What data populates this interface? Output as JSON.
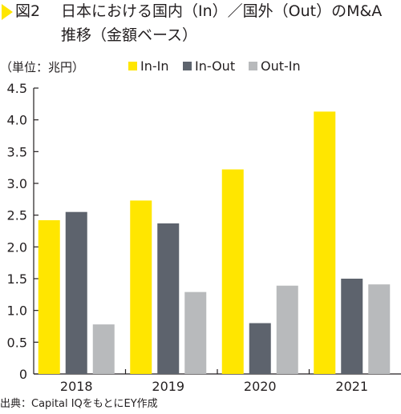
{
  "figure": {
    "label": "図2",
    "title_line1": "日本における国内（In）／国外（Out）のM&A",
    "title_line2": "推移（金額ベース）"
  },
  "colors": {
    "marker": "#ffe600",
    "axis": "#231f20"
  },
  "chart_data": {
    "type": "bar",
    "unit_label": "（単位：兆円）",
    "categories": [
      "2018",
      "2019",
      "2020",
      "2021"
    ],
    "series": [
      {
        "name": "In-In",
        "color": "#ffe600",
        "values": [
          2.42,
          2.73,
          3.22,
          4.13
        ]
      },
      {
        "name": "In-Out",
        "color": "#5d636d",
        "values": [
          2.55,
          2.37,
          0.8,
          1.5
        ]
      },
      {
        "name": "Out-In",
        "color": "#b8babc",
        "values": [
          0.78,
          1.29,
          1.39,
          1.41
        ]
      }
    ],
    "ylim": [
      0,
      4.5
    ],
    "yticks": [
      "0",
      "0.5",
      "1.0",
      "1.5",
      "2.0",
      "2.5",
      "3.0",
      "3.5",
      "4.0",
      "4.5"
    ],
    "ytick_values": [
      0,
      0.5,
      1.0,
      1.5,
      2.0,
      2.5,
      3.0,
      3.5,
      4.0,
      4.5
    ],
    "legend_position": "top",
    "grid": false
  },
  "footnote": "出典：Capital IQをもとにEY作成"
}
